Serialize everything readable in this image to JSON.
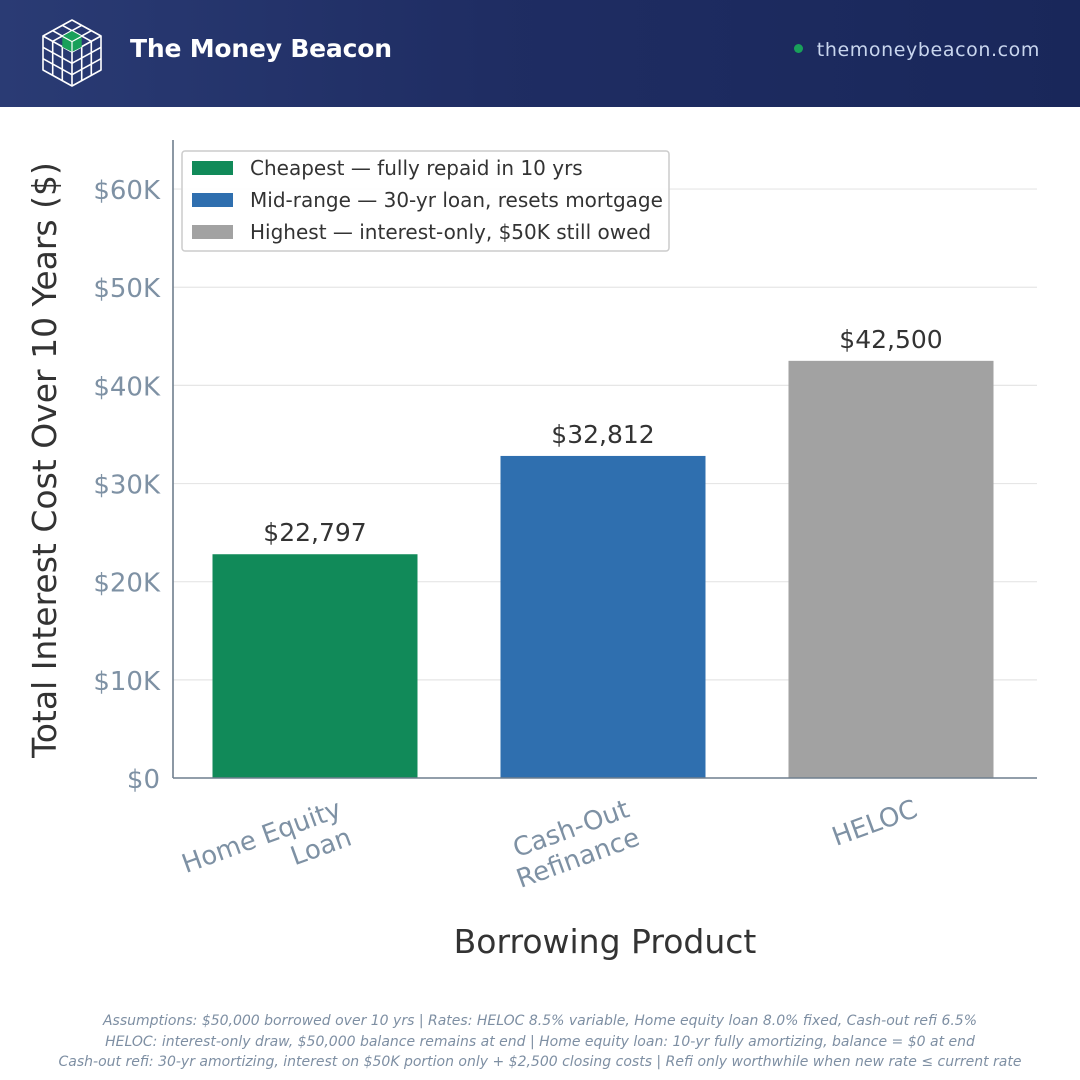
{
  "header": {
    "brand": "The Money Beacon",
    "site": "themoneybeacon.com",
    "logo_icon": "cube-grid-icon",
    "colors": {
      "background": "#1f2d63",
      "accent": "#19a05a"
    }
  },
  "chart_data": {
    "type": "bar",
    "title": "",
    "xlabel": "Borrowing Product",
    "ylabel": "Total Interest Cost Over 10 Years ($)",
    "categories": [
      [
        "Home Equity",
        "Loan"
      ],
      [
        "Cash-Out",
        "Refinance"
      ],
      [
        "HELOC"
      ]
    ],
    "values": [
      22797,
      32812,
      42500
    ],
    "value_labels": [
      "$22,797",
      "$32,812",
      "$42,500"
    ],
    "colors": [
      "#118a59",
      "#2f6faf",
      "#a2a2a2"
    ],
    "ylim": [
      0,
      65000
    ],
    "yticks": [
      0,
      10000,
      20000,
      30000,
      40000,
      50000,
      60000
    ],
    "ytick_labels": [
      "$0",
      "$10K",
      "$20K",
      "$30K",
      "$40K",
      "$50K",
      "$60K"
    ],
    "grid": "horizontal",
    "legend": {
      "position": "top-left",
      "entries": [
        {
          "label": "Cheapest — fully repaid in 10 yrs",
          "color": "#118a59"
        },
        {
          "label": "Mid-range — 30-yr loan, resets mortgage",
          "color": "#2f6faf"
        },
        {
          "label": "Highest — interest-only, $50K still owed",
          "color": "#a2a2a2"
        }
      ]
    }
  },
  "footnotes": [
    "Assumptions: $50,000 borrowed over 10 yrs | Rates: HELOC 8.5% variable, Home equity loan 8.0% fixed, Cash-out refi 6.5%",
    "HELOC: interest-only draw, $50,000 balance remains at end | Home equity loan: 10-yr fully amortizing, balance = $0 at end",
    "Cash-out refi: 30-yr amortizing, interest on $50K portion only + $2,500 closing costs | Refi only worthwhile when new rate ≤ current rate"
  ]
}
